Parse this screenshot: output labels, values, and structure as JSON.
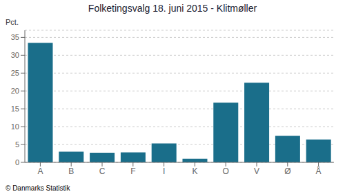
{
  "chart_data": {
    "type": "bar",
    "title": "Folketingsvalg 18. juni 2015 - Klitmøller",
    "categories": [
      "A",
      "B",
      "C",
      "F",
      "I",
      "K",
      "O",
      "V",
      "Ø",
      "Å"
    ],
    "values": [
      33.5,
      3.0,
      2.7,
      2.8,
      5.3,
      1.0,
      16.7,
      22.3,
      7.4,
      6.4
    ],
    "color": "#1a6e8a",
    "ylabel": "Pct.",
    "ylim": [
      0,
      37
    ],
    "yticks": [
      0,
      5,
      10,
      15,
      20,
      25,
      30,
      35
    ],
    "grid": true,
    "annotations": [
      "© Danmarks Statistik"
    ]
  }
}
